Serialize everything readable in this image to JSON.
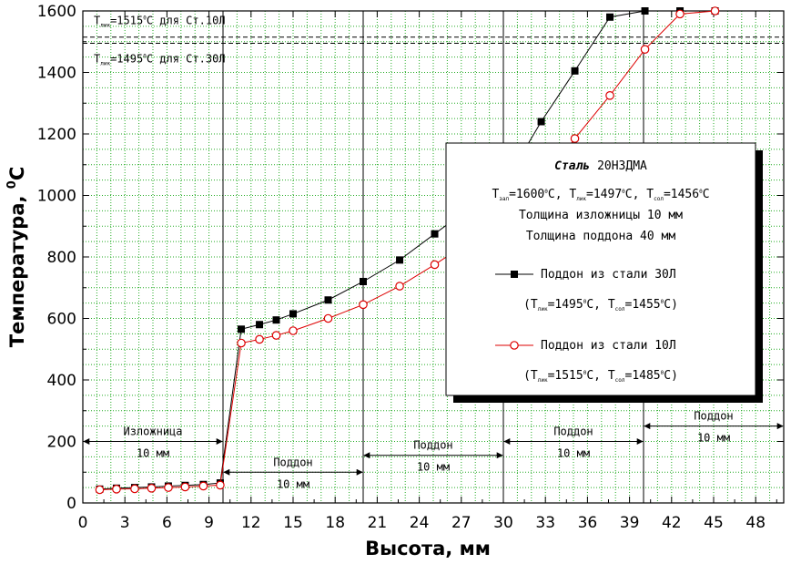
{
  "chart_data": {
    "type": "line",
    "xlabel": "Высота, мм",
    "ylabel": "Температура, °С",
    "xlim": [
      0,
      50
    ],
    "ylim": [
      0,
      1600
    ],
    "x_ticks": [
      0,
      3,
      6,
      9,
      12,
      15,
      18,
      21,
      24,
      27,
      30,
      33,
      36,
      39,
      42,
      45,
      48
    ],
    "y_ticks": [
      0,
      200,
      400,
      600,
      800,
      1000,
      1200,
      1400,
      1600
    ],
    "grid": true,
    "series": [
      {
        "name": "Поддон из стали 30Л",
        "color": "#000000",
        "marker": "filled-square",
        "x": [
          1.2,
          2.4,
          3.7,
          4.9,
          6.1,
          7.3,
          8.6,
          9.8,
          11.3,
          12.6,
          13.8,
          15.0,
          17.5,
          20.0,
          22.6,
          25.1,
          27.6,
          30.1,
          32.7,
          35.1,
          37.6,
          40.1,
          42.6,
          45.1
        ],
        "y": [
          45,
          48,
          50,
          52,
          55,
          57,
          60,
          65,
          565,
          580,
          595,
          615,
          660,
          720,
          790,
          875,
          960,
          1040,
          1240,
          1405,
          1580,
          1600,
          1600,
          1600
        ]
      },
      {
        "name": "Поддон из стали 10Л",
        "color": "#dd0000",
        "marker": "open-circle",
        "x": [
          1.2,
          2.4,
          3.7,
          4.9,
          6.1,
          7.3,
          8.6,
          9.8,
          11.3,
          12.6,
          13.8,
          15.0,
          17.5,
          20.0,
          22.6,
          25.1,
          27.6,
          30.1,
          32.7,
          35.1,
          37.6,
          40.1,
          42.6,
          45.1
        ],
        "y": [
          43,
          45,
          46,
          48,
          50,
          52,
          55,
          58,
          520,
          532,
          545,
          560,
          600,
          645,
          705,
          775,
          850,
          930,
          1040,
          1185,
          1325,
          1475,
          1590,
          1600
        ]
      }
    ],
    "reference_lines": [
      {
        "y": 1515,
        "label_prefix": "T",
        "label_sub": "лик",
        "label_value": "=1515",
        "label_sup": "0",
        "label_suffix": "С для Ст.10Л"
      },
      {
        "y": 1495,
        "label_prefix": "T",
        "label_sub": "лик",
        "label_value": "=1495",
        "label_sup": "0",
        "label_suffix": "С для Ст.30Л"
      }
    ],
    "vertical_dividers": [
      10,
      20,
      30,
      40
    ],
    "zone_labels": [
      {
        "x_from": 0,
        "x_to": 10,
        "y": 200,
        "row": "above",
        "name": "Изложница",
        "size": "10 мм"
      },
      {
        "x_from": 10,
        "x_to": 20,
        "y": 100,
        "row": "above",
        "name": "Поддон",
        "size": "10 мм"
      },
      {
        "x_from": 20,
        "x_to": 30,
        "y": 155,
        "row": "above",
        "name": "Поддон",
        "size": "10 мм"
      },
      {
        "x_from": 30,
        "x_to": 40,
        "y": 200,
        "row": "above",
        "name": "Поддон",
        "size": "10 мм"
      },
      {
        "x_from": 40,
        "x_to": 50,
        "y": 250,
        "row": "above",
        "name": "Поддон",
        "size": "10 мм"
      }
    ],
    "legend": {
      "position": "center-right",
      "title_prefix": "Сталь",
      "title_grade": "20НЗДМА",
      "temps": [
        {
          "prefix": "T",
          "sub": "зал",
          "value": "=1600",
          "sup": "0",
          "unit": "С,"
        },
        {
          "prefix": "T",
          "sub": "лик",
          "value": "=1497",
          "sup": "0",
          "unit": "С,"
        },
        {
          "prefix": "T",
          "sub": "сол",
          "value": "=1456",
          "sup": "0",
          "unit": "С"
        }
      ],
      "mold_thickness": "Толщина изложницы 10 мм",
      "pallet_thickness": "Толщина поддона 40 мм",
      "entries": [
        {
          "label": "Поддон из стали 30Л",
          "note": {
            "a_pre": "(T",
            "a_sub": "лик",
            "a_val": "=1495",
            "a_sup": "0",
            "a_unit": "С,",
            "b_pre": "T",
            "b_sub": "сол",
            "b_val": "=1455",
            "b_sup": "0",
            "b_unit": "С)"
          }
        },
        {
          "label": "Поддон из стали 10Л",
          "note": {
            "a_pre": "(T",
            "a_sub": "лик",
            "a_val": "=1515",
            "a_sup": "0",
            "a_unit": "С,",
            "b_pre": "T",
            "b_sub": "сол",
            "b_val": "=1485",
            "b_sup": "0",
            "b_unit": "С)"
          }
        }
      ]
    }
  }
}
